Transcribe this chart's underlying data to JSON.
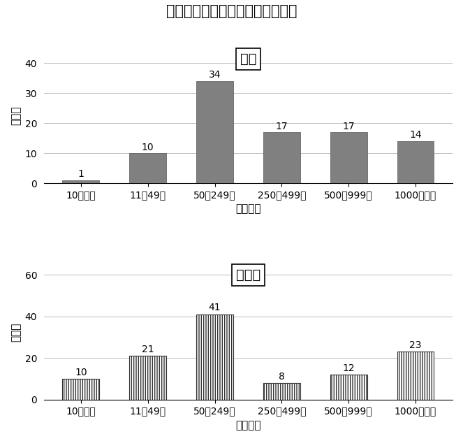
{
  "title": "従業員数に基づく企業規模の分布",
  "categories": [
    "10人未満",
    "11～49人",
    "50～249人",
    "250～499人",
    "500～999人",
    "1000人以上"
  ],
  "japan_values": [
    1,
    10,
    34,
    17,
    17,
    14
  ],
  "germany_values": [
    10,
    21,
    41,
    8,
    12,
    23
  ],
  "japan_label": "日本",
  "germany_label": "ドイツ",
  "ylabel": "企業数",
  "xlabel": "従業員数",
  "japan_ylim": [
    0,
    45
  ],
  "germany_ylim": [
    0,
    65
  ],
  "japan_yticks": [
    0,
    10,
    20,
    30,
    40
  ],
  "germany_yticks": [
    0,
    20,
    40,
    60
  ],
  "bar_color_japan": "#808080",
  "background_color": "#ffffff",
  "title_fontsize": 15,
  "label_fontsize": 11,
  "tick_fontsize": 10,
  "value_fontsize": 10
}
